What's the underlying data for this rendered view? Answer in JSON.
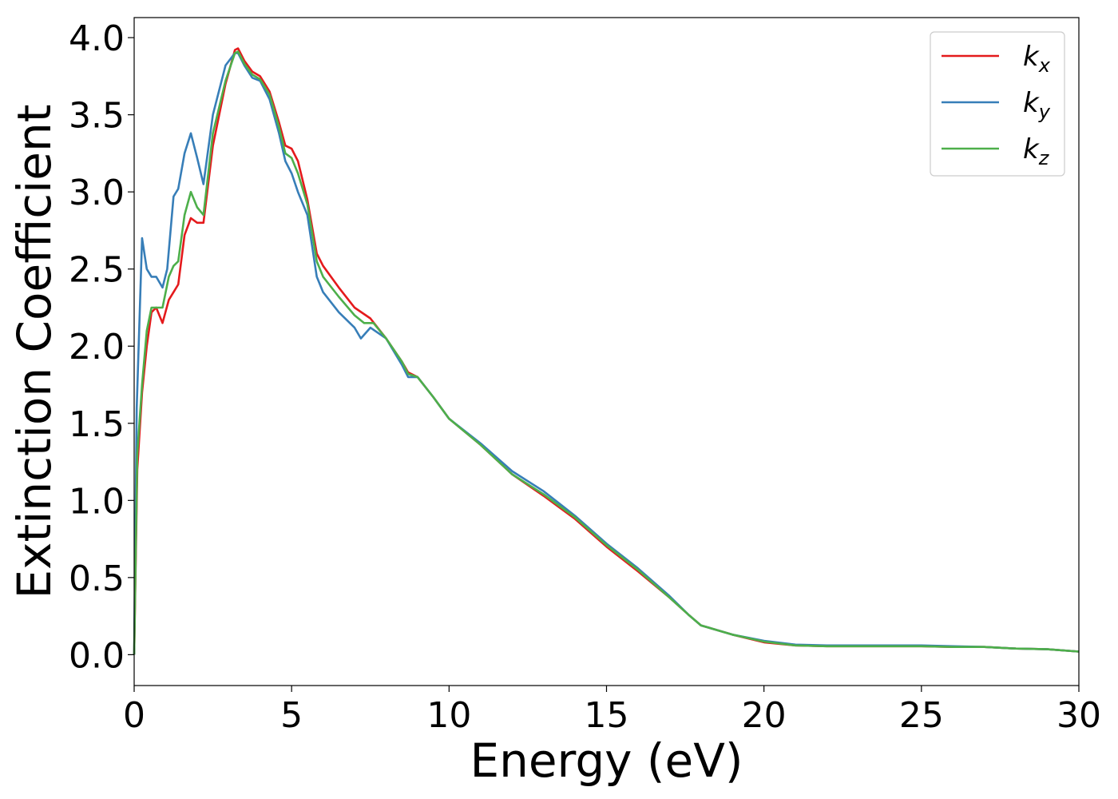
{
  "chart_data": {
    "type": "line",
    "title": "",
    "xlabel": "Energy (eV)",
    "ylabel": "Extinction Coefficient",
    "xlim": [
      0,
      30
    ],
    "ylim": [
      -0.2,
      4.13
    ],
    "xticks": [
      0,
      5,
      10,
      15,
      20,
      25,
      30
    ],
    "xtick_labels": [
      "0",
      "5",
      "10",
      "15",
      "20",
      "25",
      "30"
    ],
    "yticks": [
      0.0,
      0.5,
      1.0,
      1.5,
      2.0,
      2.5,
      3.0,
      3.5,
      4.0
    ],
    "ytick_labels": [
      "0.0",
      "0.5",
      "1.0",
      "1.5",
      "2.0",
      "2.5",
      "3.0",
      "3.5",
      "4.0"
    ],
    "grid": false,
    "legend_position": "top-right",
    "series": [
      {
        "name": "k_x",
        "label_main": "k",
        "label_sub": "x",
        "color": "#e41a1c",
        "points": [
          [
            0,
            0
          ],
          [
            0.1,
            1.2
          ],
          [
            0.25,
            1.7
          ],
          [
            0.4,
            2.0
          ],
          [
            0.55,
            2.22
          ],
          [
            0.7,
            2.25
          ],
          [
            0.9,
            2.15
          ],
          [
            1.1,
            2.3
          ],
          [
            1.25,
            2.35
          ],
          [
            1.4,
            2.4
          ],
          [
            1.6,
            2.72
          ],
          [
            1.8,
            2.83
          ],
          [
            2.0,
            2.8
          ],
          [
            2.2,
            2.8
          ],
          [
            2.5,
            3.3
          ],
          [
            2.9,
            3.7
          ],
          [
            3.2,
            3.92
          ],
          [
            3.3,
            3.93
          ],
          [
            3.5,
            3.85
          ],
          [
            3.75,
            3.78
          ],
          [
            4.0,
            3.75
          ],
          [
            4.3,
            3.65
          ],
          [
            4.6,
            3.45
          ],
          [
            4.8,
            3.3
          ],
          [
            5.0,
            3.28
          ],
          [
            5.2,
            3.2
          ],
          [
            5.5,
            2.95
          ],
          [
            5.8,
            2.6
          ],
          [
            6.0,
            2.52
          ],
          [
            6.5,
            2.38
          ],
          [
            7.0,
            2.25
          ],
          [
            7.5,
            2.18
          ],
          [
            8.0,
            2.05
          ],
          [
            8.5,
            1.9
          ],
          [
            8.7,
            1.83
          ],
          [
            9.0,
            1.8
          ],
          [
            9.5,
            1.67
          ],
          [
            10,
            1.53
          ],
          [
            11,
            1.36
          ],
          [
            12,
            1.17
          ],
          [
            13,
            1.03
          ],
          [
            14,
            0.88
          ],
          [
            15,
            0.7
          ],
          [
            16,
            0.54
          ],
          [
            17,
            0.37
          ],
          [
            17.6,
            0.26
          ],
          [
            18,
            0.19
          ],
          [
            18.5,
            0.16
          ],
          [
            19,
            0.13
          ],
          [
            20,
            0.08
          ],
          [
            21,
            0.06
          ],
          [
            22,
            0.055
          ],
          [
            23,
            0.055
          ],
          [
            24,
            0.055
          ],
          [
            25,
            0.055
          ],
          [
            26,
            0.05
          ],
          [
            27,
            0.05
          ],
          [
            28,
            0.04
          ],
          [
            29,
            0.035
          ],
          [
            30,
            0.02
          ]
        ]
      },
      {
        "name": "k_y",
        "label_main": "k",
        "label_sub": "y",
        "color": "#377eb8",
        "points": [
          [
            0,
            0
          ],
          [
            0.08,
            1.6
          ],
          [
            0.25,
            2.7
          ],
          [
            0.4,
            2.5
          ],
          [
            0.55,
            2.45
          ],
          [
            0.7,
            2.45
          ],
          [
            0.9,
            2.38
          ],
          [
            1.05,
            2.5
          ],
          [
            1.25,
            2.97
          ],
          [
            1.4,
            3.02
          ],
          [
            1.6,
            3.25
          ],
          [
            1.8,
            3.38
          ],
          [
            2.0,
            3.22
          ],
          [
            2.2,
            3.05
          ],
          [
            2.5,
            3.5
          ],
          [
            2.9,
            3.82
          ],
          [
            3.2,
            3.9
          ],
          [
            3.3,
            3.9
          ],
          [
            3.5,
            3.82
          ],
          [
            3.75,
            3.74
          ],
          [
            4.0,
            3.72
          ],
          [
            4.3,
            3.6
          ],
          [
            4.6,
            3.38
          ],
          [
            4.8,
            3.2
          ],
          [
            5.0,
            3.12
          ],
          [
            5.2,
            3.0
          ],
          [
            5.5,
            2.85
          ],
          [
            5.8,
            2.45
          ],
          [
            6.0,
            2.35
          ],
          [
            6.5,
            2.22
          ],
          [
            7.0,
            2.12
          ],
          [
            7.2,
            2.05
          ],
          [
            7.5,
            2.12
          ],
          [
            8.0,
            2.05
          ],
          [
            8.5,
            1.88
          ],
          [
            8.7,
            1.8
          ],
          [
            9.0,
            1.8
          ],
          [
            9.5,
            1.67
          ],
          [
            10,
            1.53
          ],
          [
            11,
            1.37
          ],
          [
            12,
            1.19
          ],
          [
            13,
            1.06
          ],
          [
            14,
            0.9
          ],
          [
            15,
            0.72
          ],
          [
            16,
            0.56
          ],
          [
            17,
            0.38
          ],
          [
            17.6,
            0.26
          ],
          [
            18,
            0.19
          ],
          [
            18.5,
            0.16
          ],
          [
            19,
            0.13
          ],
          [
            20,
            0.09
          ],
          [
            21,
            0.065
          ],
          [
            22,
            0.06
          ],
          [
            23,
            0.06
          ],
          [
            24,
            0.06
          ],
          [
            25,
            0.06
          ],
          [
            26,
            0.055
          ],
          [
            27,
            0.05
          ],
          [
            28,
            0.04
          ],
          [
            29,
            0.035
          ],
          [
            30,
            0.02
          ]
        ]
      },
      {
        "name": "k_z",
        "label_main": "k",
        "label_sub": "z",
        "color": "#4daf4a",
        "points": [
          [
            0,
            0
          ],
          [
            0.1,
            1.3
          ],
          [
            0.25,
            1.75
          ],
          [
            0.4,
            2.1
          ],
          [
            0.55,
            2.25
          ],
          [
            0.7,
            2.25
          ],
          [
            0.9,
            2.25
          ],
          [
            1.1,
            2.45
          ],
          [
            1.25,
            2.52
          ],
          [
            1.4,
            2.55
          ],
          [
            1.6,
            2.85
          ],
          [
            1.8,
            3.0
          ],
          [
            2.0,
            2.9
          ],
          [
            2.2,
            2.85
          ],
          [
            2.5,
            3.38
          ],
          [
            2.9,
            3.72
          ],
          [
            3.2,
            3.9
          ],
          [
            3.3,
            3.91
          ],
          [
            3.5,
            3.83
          ],
          [
            3.75,
            3.76
          ],
          [
            4.0,
            3.73
          ],
          [
            4.3,
            3.63
          ],
          [
            4.6,
            3.42
          ],
          [
            4.8,
            3.25
          ],
          [
            5.0,
            3.22
          ],
          [
            5.2,
            3.12
          ],
          [
            5.5,
            2.92
          ],
          [
            5.8,
            2.55
          ],
          [
            6.0,
            2.45
          ],
          [
            6.5,
            2.32
          ],
          [
            7.0,
            2.2
          ],
          [
            7.3,
            2.15
          ],
          [
            7.6,
            2.15
          ],
          [
            8.0,
            2.05
          ],
          [
            8.5,
            1.9
          ],
          [
            8.7,
            1.82
          ],
          [
            9.0,
            1.8
          ],
          [
            9.5,
            1.67
          ],
          [
            10,
            1.53
          ],
          [
            11,
            1.36
          ],
          [
            12,
            1.17
          ],
          [
            13,
            1.04
          ],
          [
            14,
            0.89
          ],
          [
            15,
            0.71
          ],
          [
            16,
            0.55
          ],
          [
            17,
            0.37
          ],
          [
            17.6,
            0.26
          ],
          [
            18,
            0.19
          ],
          [
            18.5,
            0.16
          ],
          [
            19,
            0.13
          ],
          [
            20,
            0.085
          ],
          [
            21,
            0.06
          ],
          [
            22,
            0.055
          ],
          [
            23,
            0.055
          ],
          [
            24,
            0.055
          ],
          [
            25,
            0.055
          ],
          [
            26,
            0.05
          ],
          [
            27,
            0.05
          ],
          [
            28,
            0.04
          ],
          [
            29,
            0.035
          ],
          [
            30,
            0.02
          ]
        ]
      }
    ]
  }
}
